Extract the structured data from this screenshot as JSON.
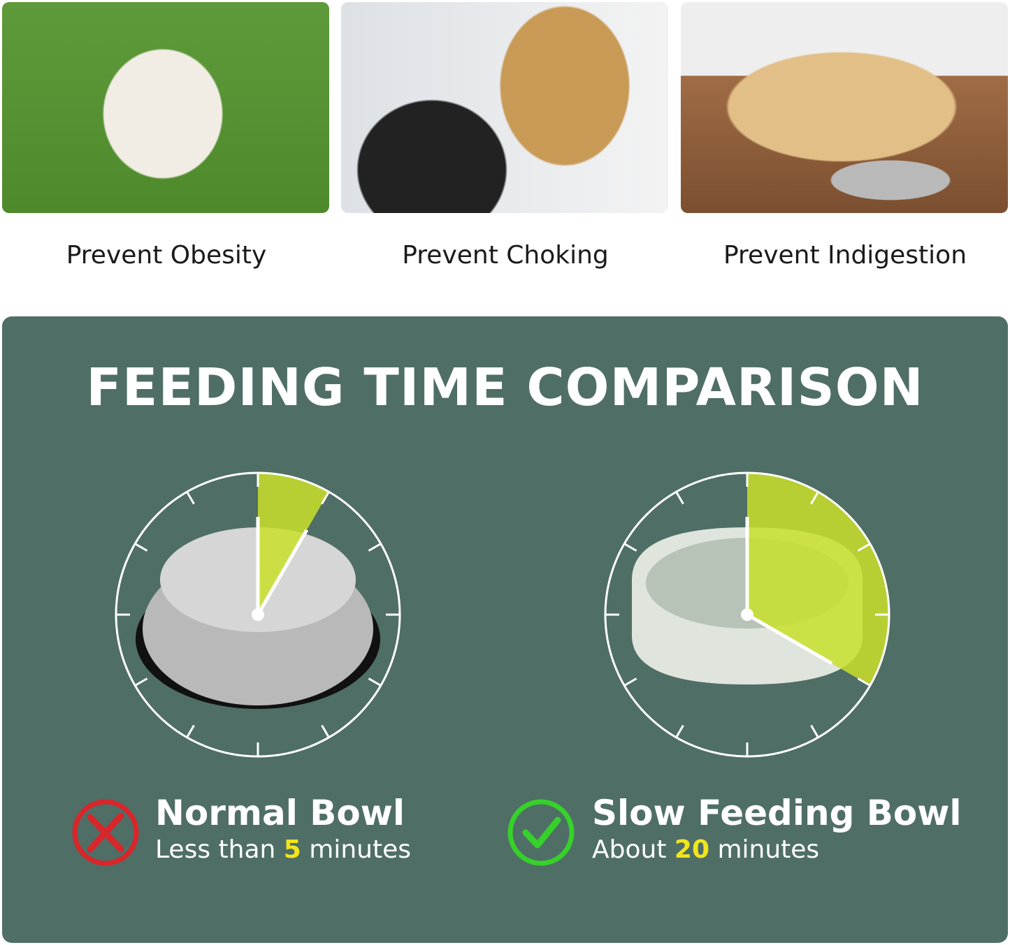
{
  "benefits": [
    {
      "label": "Prevent Obesity",
      "image": "pug-on-grass"
    },
    {
      "label": "Prevent Choking",
      "image": "golden-retriever-mouth-check"
    },
    {
      "label": "Prevent Indigestion",
      "image": "labrador-lying-near-bowl"
    }
  ],
  "comparison": {
    "title": "FEEDING TIME COMPARISON",
    "normal": {
      "name": "Normal Bowl",
      "prefix": "Less than ",
      "value": "5",
      "suffix": " minutes",
      "fraction": 0.0833,
      "icon": "red-x-circle-icon",
      "color": "#d9262b"
    },
    "slow": {
      "name": "Slow Feeding Bowl",
      "prefix": "About ",
      "value": "20",
      "suffix": " minutes",
      "fraction": 0.3333,
      "icon": "green-check-circle-icon",
      "color": "#36d12a"
    }
  },
  "colors": {
    "panel": "#4f6e66",
    "wedge": "#c9e12a",
    "highlight": "#f2e51c"
  }
}
